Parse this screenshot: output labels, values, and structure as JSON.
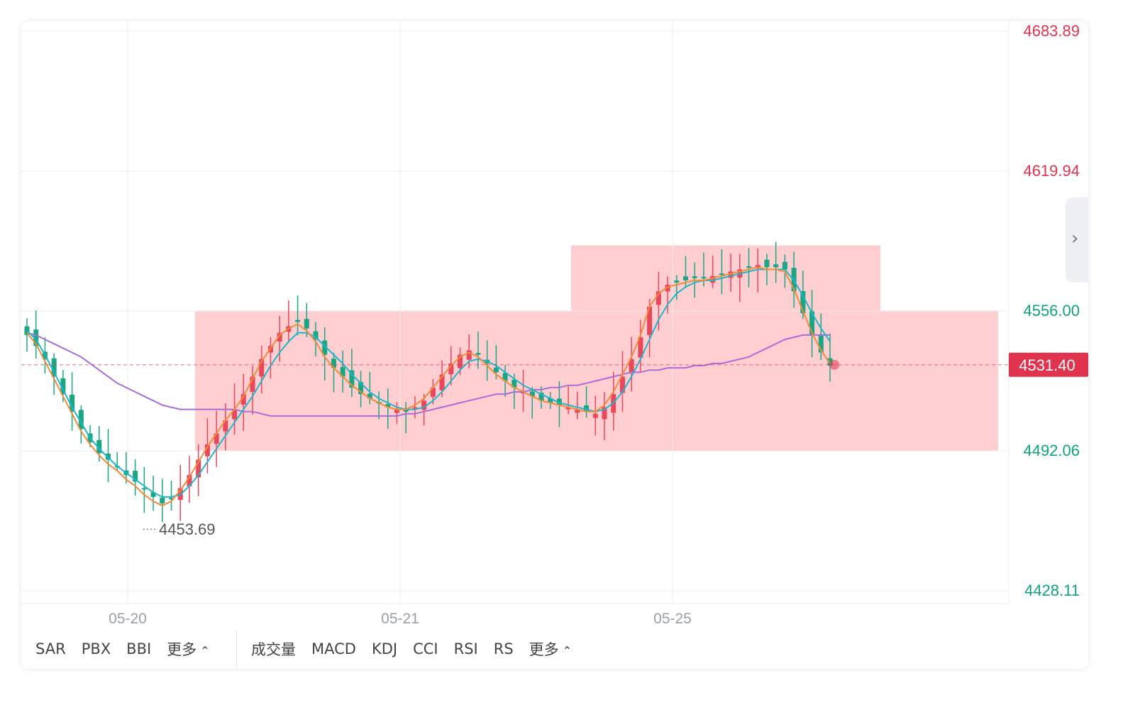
{
  "chart_data": {
    "type": "candlestick",
    "y_axis": {
      "ticks": [
        "4683.89",
        "4619.94",
        "4556.00",
        "4492.06",
        "4428.11"
      ],
      "tick_colors": [
        "#e0334d",
        "#e0334d",
        "#10a37f",
        "#10a37f",
        "#10a37f"
      ],
      "range": [
        4428.11,
        4683.89
      ]
    },
    "x_axis": {
      "ticks": [
        "05-20",
        "05-21",
        "05-25"
      ]
    },
    "current_price": {
      "value": 4531.4,
      "label": "4531.40"
    },
    "low_marker": {
      "value": 4453.69,
      "label": "4453.69"
    },
    "zones": [
      {
        "from": 4492,
        "to": 4556,
        "color": "#ffc9cc"
      },
      {
        "from": 4556,
        "to": 4586,
        "color": "#ffc9cc"
      }
    ],
    "colors": {
      "up": "#e8475c",
      "down": "#1aa683",
      "ma_fast": "#f08c3a",
      "ma_mid": "#1fb6c9",
      "ma_slow": "#a86ed6"
    },
    "candles_close": [
      4545,
      4540,
      4534,
      4526,
      4518,
      4510,
      4502,
      4496,
      4491,
      4488,
      4485,
      4481,
      4478,
      4475,
      4471,
      4468,
      4470,
      4475,
      4481,
      4488,
      4495,
      4500,
      4506,
      4511,
      4518,
      4526,
      4534,
      4540,
      4546,
      4549,
      4551,
      4548,
      4543,
      4536,
      4530,
      4526,
      4521,
      4518,
      4516,
      4514,
      4512,
      4511,
      4510,
      4512,
      4515,
      4521,
      4527,
      4532,
      4536,
      4538,
      4536,
      4532,
      4528,
      4524,
      4521,
      4519,
      4517,
      4515,
      4514,
      4513,
      4512,
      4511,
      4510,
      4509,
      4512,
      4518,
      4526,
      4534,
      4544,
      4558,
      4565,
      4568,
      4569,
      4570,
      4571,
      4571,
      4572,
      4573,
      4574,
      4575,
      4576,
      4577,
      4576,
      4576,
      4575,
      4565,
      4555,
      4545,
      4537,
      4531
    ],
    "ma_fast": [
      4546,
      4541,
      4533,
      4525,
      4517,
      4509,
      4501,
      4495,
      4490,
      4486,
      4483,
      4479,
      4476,
      4472,
      4469,
      4467,
      4469,
      4474,
      4480,
      4487,
      4494,
      4500,
      4506,
      4511,
      4517,
      4525,
      4533,
      4539,
      4545,
      4548,
      4550,
      4547,
      4542,
      4535,
      4530,
      4526,
      4522,
      4519,
      4516,
      4514,
      4512,
      4511,
      4511,
      4513,
      4516,
      4521,
      4526,
      4531,
      4535,
      4537,
      4535,
      4531,
      4527,
      4524,
      4521,
      4519,
      4517,
      4515,
      4514,
      4513,
      4512,
      4511,
      4510,
      4510,
      4513,
      4519,
      4527,
      4535,
      4545,
      4558,
      4564,
      4567,
      4568,
      4569,
      4570,
      4570,
      4571,
      4572,
      4573,
      4574,
      4575,
      4576,
      4575,
      4575,
      4574,
      4566,
      4556,
      4546,
      4538,
      4532
    ],
    "ma_mid": [
      4547,
      4543,
      4536,
      4528,
      4520,
      4512,
      4505,
      4498,
      4493,
      4489,
      4485,
      4482,
      4479,
      4476,
      4473,
      4471,
      4471,
      4472,
      4476,
      4481,
      4487,
      4493,
      4499,
      4505,
      4511,
      4517,
      4524,
      4531,
      4537,
      4542,
      4546,
      4546,
      4544,
      4540,
      4536,
      4532,
      4527,
      4523,
      4519,
      4516,
      4514,
      4512,
      4511,
      4511,
      4512,
      4515,
      4519,
      4524,
      4529,
      4533,
      4534,
      4533,
      4531,
      4528,
      4525,
      4522,
      4520,
      4518,
      4516,
      4514,
      4513,
      4512,
      4511,
      4510,
      4511,
      4514,
      4519,
      4526,
      4534,
      4543,
      4552,
      4559,
      4564,
      4567,
      4569,
      4570,
      4570,
      4571,
      4572,
      4573,
      4574,
      4575,
      4575,
      4575,
      4575,
      4570,
      4563,
      4555,
      4548,
      4542
    ],
    "ma_slow": [
      4546,
      4545,
      4543,
      4541,
      4539,
      4537,
      4535,
      4532,
      4529,
      4526,
      4523,
      4521,
      4519,
      4517,
      4515,
      4513,
      4512,
      4511,
      4511,
      4511,
      4511,
      4511,
      4511,
      4511,
      4510,
      4510,
      4509,
      4508,
      4508,
      4508,
      4508,
      4508,
      4508,
      4508,
      4508,
      4508,
      4508,
      4508,
      4508,
      4508,
      4508,
      4508,
      4509,
      4509,
      4510,
      4511,
      4512,
      4513,
      4514,
      4515,
      4516,
      4517,
      4518,
      4518,
      4519,
      4519,
      4520,
      4520,
      4521,
      4521,
      4522,
      4522,
      4523,
      4524,
      4525,
      4526,
      4527,
      4528,
      4528,
      4529,
      4529,
      4530,
      4530,
      4530,
      4531,
      4531,
      4532,
      4532,
      4533,
      4534,
      4535,
      4537,
      4539,
      4541,
      4543,
      4544,
      4545,
      4545,
      4545,
      4545
    ]
  },
  "indicators": {
    "main": [
      "SAR",
      "PBX",
      "BBI",
      "更多"
    ],
    "sub": [
      "成交量",
      "MACD",
      "KDJ",
      "CCI",
      "RSI",
      "RS",
      "更多"
    ]
  }
}
